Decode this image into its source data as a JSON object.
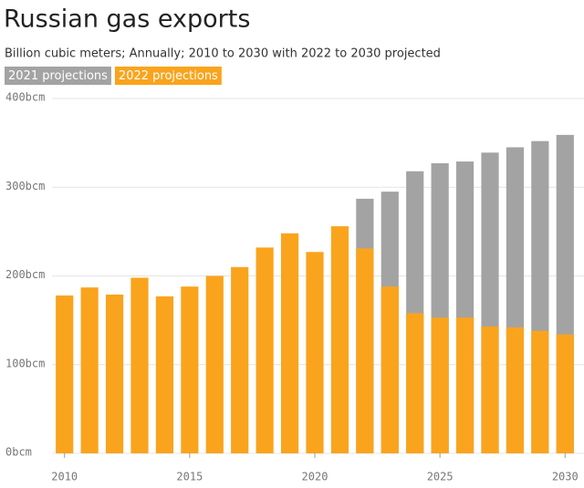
{
  "chart_data": {
    "type": "bar",
    "title": "Russian gas exports",
    "subtitle": "Billion cubic meters; Annually; 2010 to 2030 with 2022 to 2030 projected",
    "x": [
      2010,
      2011,
      2012,
      2013,
      2014,
      2015,
      2016,
      2017,
      2018,
      2019,
      2020,
      2021,
      2022,
      2023,
      2024,
      2025,
      2026,
      2027,
      2028,
      2029,
      2030
    ],
    "series": [
      {
        "name": "2021 projections",
        "color": "#a3a3a3",
        "values": [
          null,
          null,
          null,
          null,
          null,
          null,
          null,
          null,
          null,
          null,
          null,
          null,
          287,
          295,
          318,
          327,
          329,
          339,
          345,
          352,
          359
        ]
      },
      {
        "name": "2022 projections",
        "color": "#faa41d",
        "values": [
          178,
          187,
          179,
          198,
          177,
          188,
          200,
          210,
          232,
          248,
          227,
          256,
          231,
          188,
          158,
          153,
          153,
          143,
          142,
          138,
          134
        ]
      }
    ],
    "xlim": [
      2009.5,
      2030.5
    ],
    "xticks": [
      2010,
      2015,
      2020,
      2025,
      2030
    ],
    "ylim": [
      0,
      400
    ],
    "yticks": [
      {
        "value": 0,
        "label": "0bcm"
      },
      {
        "value": 100,
        "label": "100bcm"
      },
      {
        "value": 200,
        "label": "200bcm"
      },
      {
        "value": 300,
        "label": "300bcm"
      },
      {
        "value": 400,
        "label": "400bcm"
      }
    ],
    "grid": true
  }
}
